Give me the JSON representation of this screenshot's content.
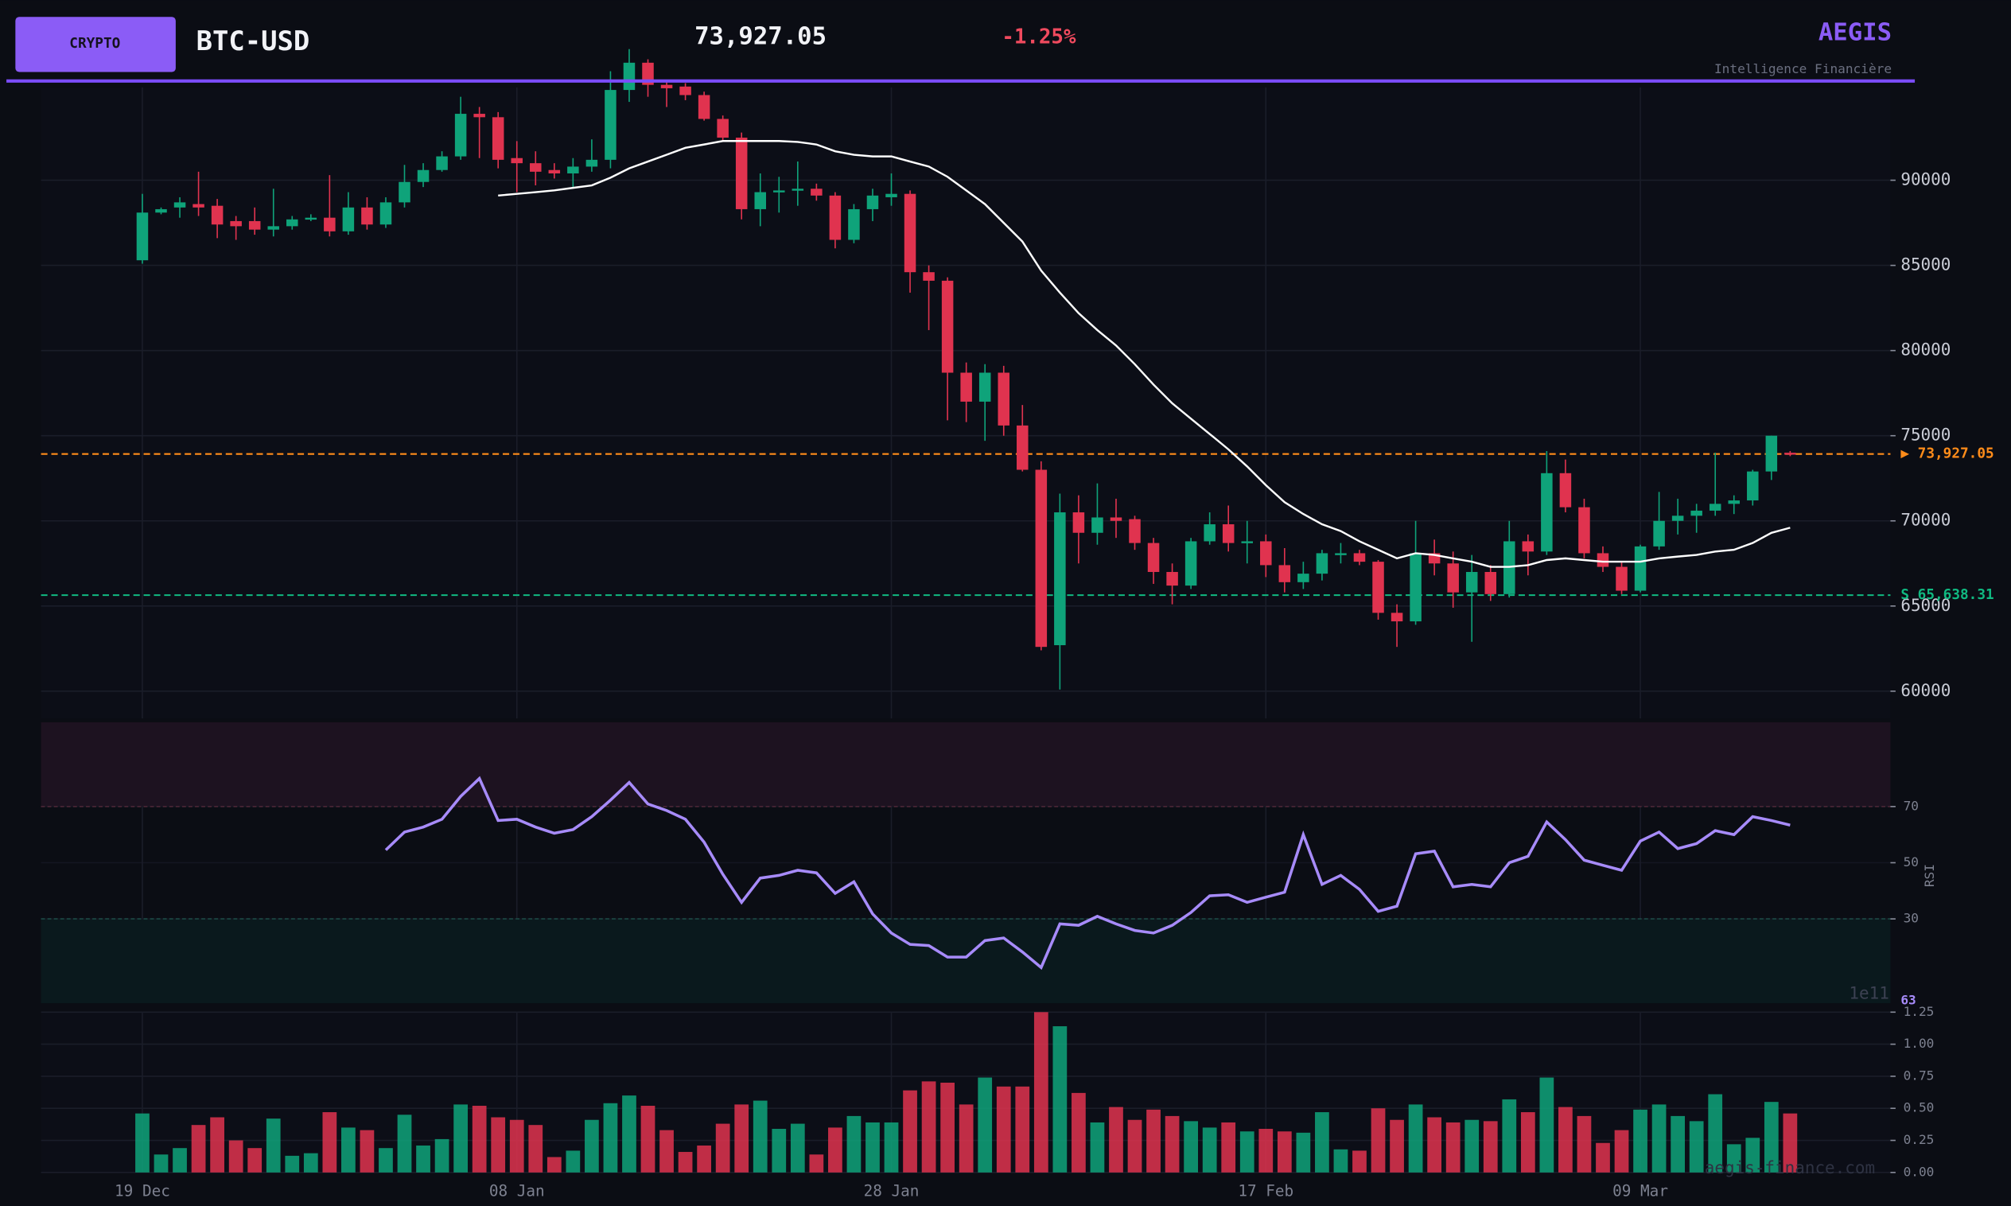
{
  "header": {
    "badge": "CRYPTO",
    "symbol": "BTC-USD",
    "price": "73,927.05",
    "change": "-1.25%",
    "brand": "AEGIS",
    "tagline": "Intelligence Financière"
  },
  "watermark": "aegis-finance.com",
  "chart_data": [
    {
      "type": "candlestick",
      "categories": [
        "19 Dec",
        null,
        null,
        null,
        null,
        null,
        null,
        null,
        null,
        null,
        null,
        null,
        null,
        null,
        null,
        null,
        null,
        null,
        null,
        null,
        "08 Jan",
        null,
        null,
        null,
        null,
        null,
        null,
        null,
        null,
        null,
        null,
        null,
        null,
        null,
        null,
        null,
        null,
        null,
        null,
        null,
        "28 Jan",
        null,
        null,
        null,
        null,
        null,
        null,
        null,
        null,
        null,
        null,
        null,
        null,
        null,
        null,
        null,
        null,
        null,
        null,
        null,
        "17 Feb",
        null,
        null,
        null,
        null,
        null,
        null,
        null,
        null,
        null,
        null,
        null,
        null,
        null,
        null,
        null,
        null,
        null,
        null,
        null,
        "09 Mar",
        null,
        null,
        null,
        null,
        null,
        null,
        null,
        null
      ],
      "open": [
        85300,
        88100,
        88400,
        88600,
        88500,
        87600,
        87600,
        87100,
        87300,
        87700,
        87800,
        87000,
        88400,
        87400,
        88700,
        89900,
        90600,
        91400,
        93900,
        93700,
        91300,
        91000,
        90600,
        90400,
        90800,
        91200,
        95300,
        96900,
        95600,
        95500,
        95000,
        93600,
        92500,
        88300,
        89300,
        89400,
        89500,
        89100,
        86500,
        88300,
        89000,
        89200,
        84600,
        84100,
        78700,
        77000,
        78700,
        75600,
        73000,
        62700,
        70500,
        69300,
        70200,
        70100,
        68700,
        67000,
        66200,
        68800,
        69800,
        68700,
        68800,
        67400,
        66400,
        66900,
        68000,
        68100,
        67600,
        64600,
        64100,
        68100,
        67500,
        65800,
        67000,
        65700,
        68800,
        68200,
        72800,
        70800,
        68100,
        67300,
        65900,
        68500,
        70000,
        70300,
        70600,
        71000,
        71200,
        72900,
        74000
      ],
      "high": [
        89200,
        88400,
        89000,
        90500,
        88900,
        87900,
        88400,
        89500,
        87900,
        88000,
        90300,
        89300,
        89000,
        89000,
        90900,
        91000,
        91700,
        94900,
        94300,
        94000,
        92300,
        91700,
        91000,
        91300,
        92400,
        96400,
        97700,
        97100,
        95800,
        95700,
        95200,
        93800,
        92800,
        90400,
        90200,
        91100,
        89800,
        89300,
        88600,
        89500,
        90400,
        89400,
        85000,
        84300,
        79300,
        79200,
        79100,
        76800,
        73500,
        71600,
        71500,
        72200,
        71300,
        70300,
        69000,
        67500,
        69000,
        70500,
        70900,
        70000,
        69200,
        68400,
        67600,
        68300,
        68700,
        68300,
        67700,
        65100,
        70000,
        68900,
        68200,
        68000,
        67400,
        70000,
        69200,
        74100,
        73600,
        71300,
        68500,
        67600,
        68600,
        71700,
        71300,
        71000,
        74000,
        71500,
        73000,
        75000,
        74100
      ],
      "low": [
        85100,
        88000,
        87800,
        87900,
        86600,
        86500,
        86800,
        86700,
        87100,
        87600,
        86700,
        86800,
        87100,
        87200,
        88400,
        89600,
        90500,
        91200,
        91300,
        90700,
        89300,
        89700,
        90100,
        89600,
        90500,
        90700,
        94600,
        94900,
        94300,
        94700,
        93500,
        92300,
        87700,
        87300,
        88100,
        88500,
        88800,
        86000,
        86300,
        87600,
        88500,
        83400,
        81200,
        75900,
        75800,
        74700,
        75000,
        72900,
        62400,
        60100,
        67500,
        68600,
        69000,
        68300,
        66300,
        65100,
        66000,
        68600,
        68200,
        67500,
        66700,
        65800,
        66000,
        66500,
        67500,
        67400,
        64200,
        62600,
        63900,
        66800,
        64900,
        62900,
        65300,
        65500,
        66800,
        68000,
        70500,
        67800,
        67000,
        65700,
        65800,
        68300,
        69200,
        69300,
        70300,
        70400,
        70900,
        72400,
        73800
      ],
      "close": [
        88100,
        88300,
        88700,
        88400,
        87400,
        87300,
        87100,
        87300,
        87700,
        87800,
        87000,
        88400,
        87400,
        88700,
        89900,
        90600,
        91400,
        93900,
        93700,
        91200,
        91000,
        90500,
        90400,
        90800,
        91200,
        95300,
        96900,
        95600,
        95400,
        95000,
        93600,
        92500,
        88300,
        89300,
        89400,
        89500,
        89100,
        86500,
        88300,
        89100,
        89200,
        84600,
        84100,
        78700,
        77000,
        78700,
        75600,
        73000,
        62600,
        70500,
        69300,
        70200,
        70000,
        68700,
        67000,
        66200,
        68800,
        69800,
        68700,
        68800,
        67400,
        66400,
        66900,
        68100,
        68100,
        67600,
        64600,
        64100,
        68100,
        67500,
        65800,
        67000,
        65700,
        68800,
        68200,
        72800,
        70800,
        68100,
        67300,
        65900,
        68500,
        70000,
        70300,
        70600,
        71000,
        71200,
        72900,
        75000,
        73927.05
      ],
      "up_color": "#0fa37a",
      "down_color": "#e0334f",
      "overlay": {
        "color": "#ffffff",
        "values": [
          null,
          null,
          null,
          null,
          null,
          null,
          null,
          null,
          null,
          null,
          null,
          null,
          null,
          null,
          null,
          null,
          null,
          null,
          null,
          89100,
          89200,
          89300,
          89400,
          89550,
          89700,
          90150,
          90700,
          91100,
          91500,
          91900,
          92100,
          92300,
          92300,
          92300,
          92300,
          92250,
          92100,
          91700,
          91500,
          91400,
          91400,
          91100,
          90800,
          90200,
          89400,
          88600,
          87500,
          86400,
          84700,
          83400,
          82200,
          81200,
          80300,
          79200,
          78000,
          76900,
          76000,
          75100,
          74200,
          73200,
          72100,
          71100,
          70400,
          69800,
          69400,
          68800,
          68300,
          67800,
          68100,
          68000,
          67800,
          67600,
          67300,
          67300,
          67400,
          67700,
          67800,
          67700,
          67600,
          67600,
          67600,
          67800,
          67900,
          68000,
          68200,
          68300,
          68700,
          69300,
          69600
        ]
      },
      "levels": [
        {
          "value": 73927.05,
          "label": "▶ 73,927.05",
          "color": "#ff8c1a"
        },
        {
          "value": 65638.31,
          "label": "S  65,638.31",
          "color": "#10b981"
        }
      ],
      "ylim": [
        58400,
        95450
      ],
      "yticks": [
        60000,
        65000,
        70000,
        75000,
        80000,
        85000,
        90000
      ],
      "grid": true
    },
    {
      "type": "line",
      "axis_label": "RSI",
      "values": [
        null,
        null,
        null,
        null,
        null,
        null,
        null,
        null,
        null,
        null,
        null,
        null,
        null,
        54.5,
        60.9,
        62.7,
        65.5,
        73.6,
        80.0,
        65.0,
        65.5,
        62.7,
        60.5,
        61.8,
        66.4,
        72.3,
        78.6,
        70.9,
        68.6,
        65.5,
        57.3,
        45.9,
        35.9,
        44.5,
        45.5,
        47.3,
        46.4,
        39.1,
        43.2,
        31.8,
        25.0,
        20.9,
        20.5,
        16.4,
        16.4,
        22.3,
        23.2,
        18.2,
        12.7,
        28.2,
        27.7,
        30.9,
        28.2,
        25.9,
        25.0,
        27.7,
        32.3,
        38.2,
        38.6,
        35.9,
        37.7,
        39.5,
        60.0,
        42.3,
        45.5,
        40.5,
        32.7,
        34.5,
        53.2,
        54.1,
        41.4,
        42.3,
        41.4,
        50.0,
        52.3,
        64.5,
        58.2,
        50.9,
        49.1,
        47.3,
        57.7,
        60.9,
        55.0,
        56.8,
        61.4,
        60.0,
        66.4,
        65.0,
        63.4
      ],
      "value_labels": [
        null,
        null,
        null,
        null,
        null,
        null,
        null,
        null,
        null,
        null,
        null,
        null,
        null,
        null,
        null,
        null,
        null,
        null,
        null,
        null,
        null,
        null,
        null,
        null,
        null,
        null,
        null,
        null,
        null,
        null,
        null,
        null,
        null,
        null,
        null,
        null,
        null,
        null,
        null,
        null,
        null,
        null,
        null,
        null,
        null,
        null,
        null,
        null,
        null,
        null,
        null,
        null,
        null,
        null,
        null,
        null,
        null,
        null,
        null,
        null,
        null,
        null,
        null,
        null,
        null,
        null,
        null,
        null,
        null,
        null,
        null,
        null,
        null,
        null,
        null,
        null,
        null,
        null,
        null,
        null,
        null,
        null,
        null,
        null,
        null,
        null,
        null,
        null,
        "63"
      ],
      "color": "#a78bfa",
      "overbought": 70,
      "oversold": 30,
      "ylim": [
        0,
        100
      ],
      "yticks": [
        30,
        50,
        70
      ]
    },
    {
      "type": "bar",
      "values": [
        0.46,
        0.14,
        0.19,
        0.37,
        0.43,
        0.25,
        0.19,
        0.42,
        0.13,
        0.15,
        0.47,
        0.35,
        0.33,
        0.19,
        0.45,
        0.21,
        0.26,
        0.53,
        0.52,
        0.43,
        0.41,
        0.37,
        0.12,
        0.17,
        0.41,
        0.54,
        0.6,
        0.52,
        0.33,
        0.16,
        0.21,
        0.38,
        0.53,
        0.56,
        0.34,
        0.38,
        0.14,
        0.35,
        0.44,
        0.39,
        0.39,
        0.64,
        0.71,
        0.7,
        0.53,
        0.74,
        0.67,
        0.67,
        1.25,
        1.14,
        0.62,
        0.39,
        0.51,
        0.41,
        0.49,
        0.44,
        0.4,
        0.35,
        0.39,
        0.32,
        0.34,
        0.32,
        0.31,
        0.47,
        0.18,
        0.17,
        0.5,
        0.41,
        0.53,
        0.43,
        0.39,
        0.41,
        0.4,
        0.57,
        0.47,
        0.74,
        0.51,
        0.44,
        0.23,
        0.33,
        0.49,
        0.53,
        0.44,
        0.4,
        0.61,
        0.22,
        0.27,
        0.55,
        0.46
      ],
      "offset_label": "1e11",
      "ylim": [
        0,
        1.25
      ],
      "yticks": [
        {
          "value": 0,
          "label": "0.00"
        },
        {
          "value": 0.25,
          "label": "0.25"
        },
        {
          "value": 0.5,
          "label": "0.50"
        },
        {
          "value": 0.75,
          "label": "0.75"
        },
        {
          "value": 1,
          "label": "1.00"
        },
        {
          "value": 1.25,
          "label": "1.25"
        }
      ],
      "grid": true
    }
  ]
}
